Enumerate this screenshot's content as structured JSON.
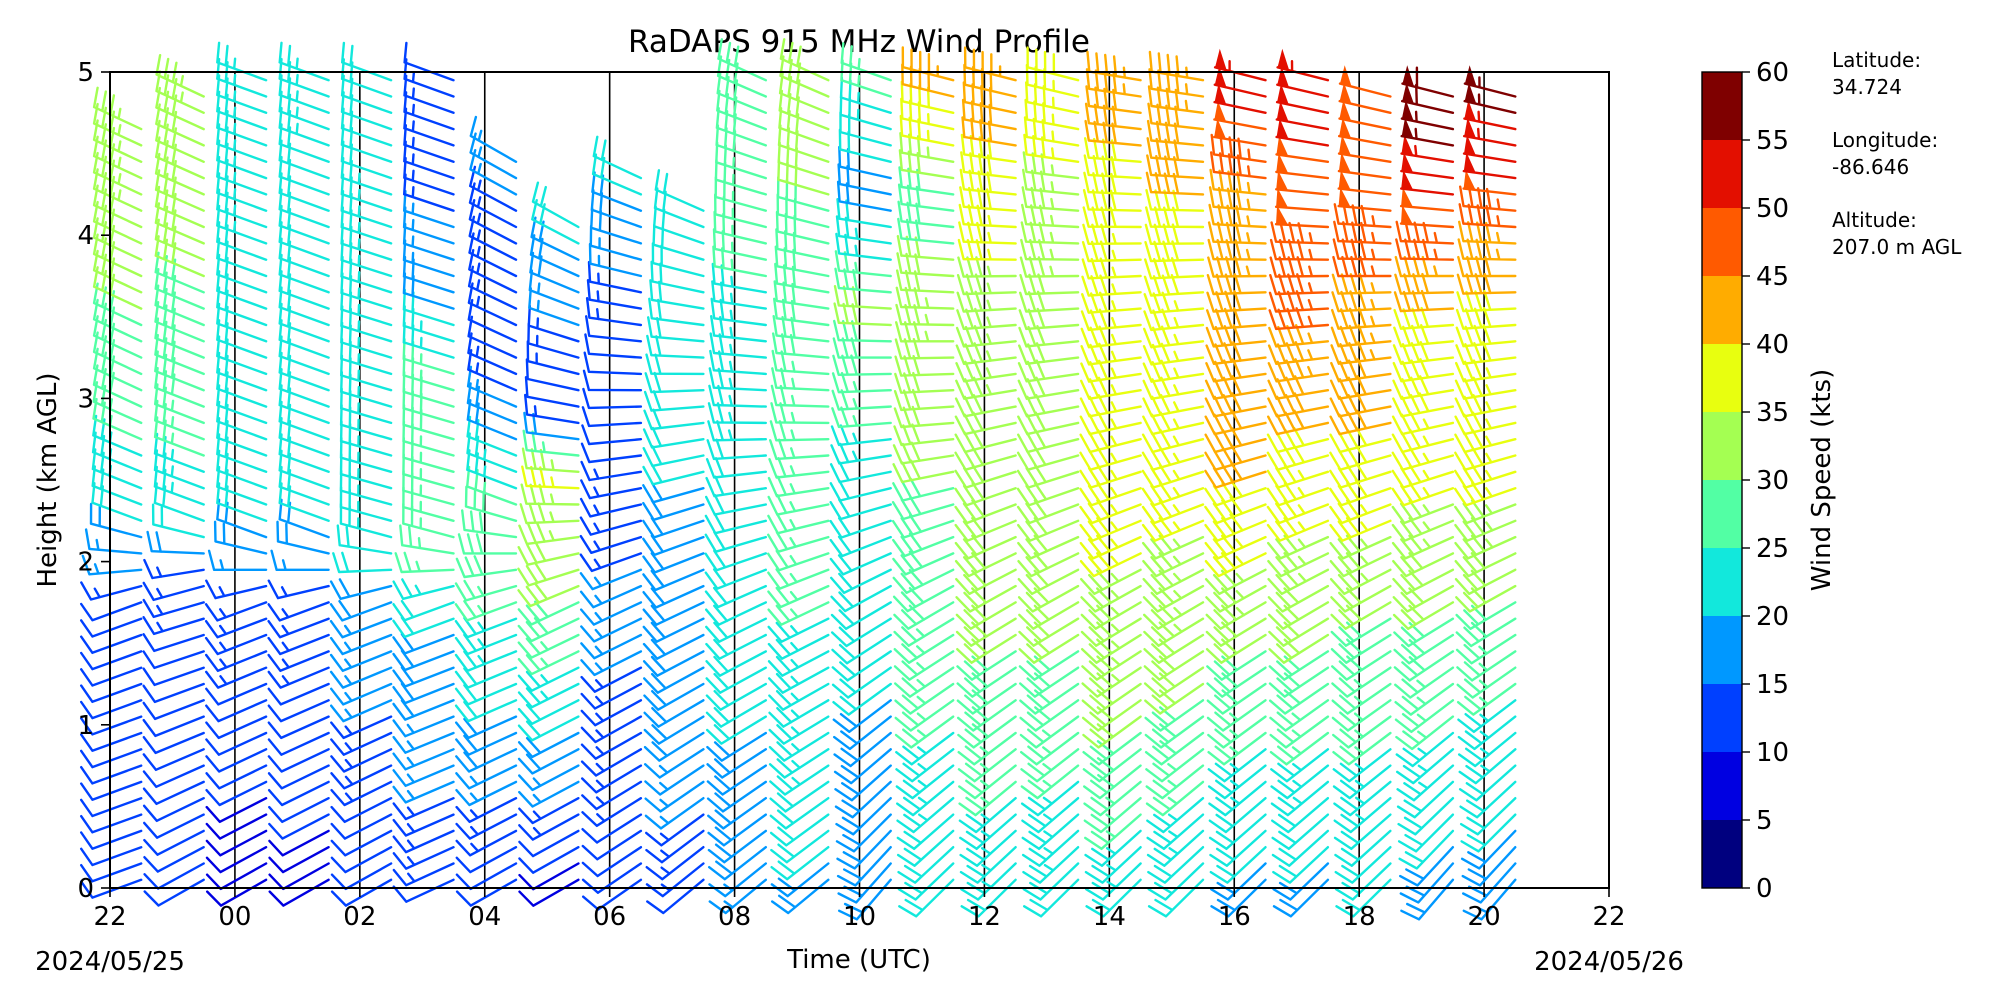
{
  "chart_data": {
    "type": "wind-barb",
    "title": "RaDAPS 915 MHz Wind Profile",
    "xlabel": "Time (UTC)",
    "ylabel": "Height (km AGL)",
    "x_ticks": [
      "22",
      "00",
      "02",
      "04",
      "06",
      "08",
      "10",
      "12",
      "14",
      "16",
      "18",
      "20",
      "22"
    ],
    "x_hours_since_start": [
      0,
      2,
      4,
      6,
      8,
      10,
      12,
      14,
      16,
      18,
      20,
      22,
      24
    ],
    "start_date": "2024/05/25",
    "end_date": "2024/05/26",
    "y_ticks": [
      "0",
      "1",
      "2",
      "3",
      "4",
      "5"
    ],
    "ylim": [
      0,
      5
    ],
    "colorbar": {
      "label": "Wind Speed (kts)",
      "boundaries": [
        0,
        5,
        10,
        15,
        20,
        25,
        30,
        35,
        40,
        45,
        50,
        55,
        60
      ],
      "tick_labels": [
        "0",
        "5",
        "10",
        "15",
        "20",
        "25",
        "30",
        "35",
        "40",
        "45",
        "50",
        "55",
        "60"
      ],
      "colors": [
        "#00007f",
        "#0000e1",
        "#0040ff",
        "#0098ff",
        "#12e8dc",
        "#52ffa4",
        "#a4ff52",
        "#e8ff0f",
        "#ffac00",
        "#ff5a00",
        "#e30f00",
        "#7f0000"
      ]
    },
    "station": {
      "latitude_label": "Latitude:",
      "latitude": "34.724",
      "longitude_label": "Longitude:",
      "longitude": "-86.646",
      "altitude_label": "Altitude:",
      "altitude": "207.0 m AGL"
    },
    "profiles": [
      {
        "time": 0.5,
        "top": 4.7,
        "dir": [
          [
            0,
            250
          ],
          [
            1.8,
            250
          ],
          [
            2.2,
            290
          ],
          [
            3,
            295
          ],
          [
            4.7,
            295
          ]
        ],
        "spd": [
          [
            0,
            10
          ],
          [
            1.8,
            12
          ],
          [
            2.2,
            20
          ],
          [
            3,
            28
          ],
          [
            4.7,
            35
          ]
        ]
      },
      {
        "time": 1.5,
        "top": 4.85,
        "dir": [
          [
            0,
            240
          ],
          [
            1.9,
            255
          ],
          [
            2.2,
            290
          ],
          [
            4.85,
            295
          ]
        ],
        "spd": [
          [
            0,
            10
          ],
          [
            1.9,
            13
          ],
          [
            2.2,
            22
          ],
          [
            3,
            28
          ],
          [
            4.85,
            33
          ]
        ]
      },
      {
        "time": 2.5,
        "top": 5,
        "dir": [
          [
            0,
            240
          ],
          [
            1.8,
            250
          ],
          [
            2.1,
            290
          ],
          [
            5,
            290
          ]
        ],
        "spd": [
          [
            0,
            8
          ],
          [
            1.8,
            14
          ],
          [
            2.2,
            20
          ],
          [
            5,
            24
          ]
        ]
      },
      {
        "time": 3.5,
        "top": 5,
        "dir": [
          [
            0,
            240
          ],
          [
            1.8,
            250
          ],
          [
            2.1,
            290
          ],
          [
            5,
            290
          ]
        ],
        "spd": [
          [
            0,
            9
          ],
          [
            1.8,
            14
          ],
          [
            2.2,
            20
          ],
          [
            5,
            23
          ]
        ]
      },
      {
        "time": 4.5,
        "top": 5,
        "dir": [
          [
            0,
            240
          ],
          [
            1.8,
            250
          ],
          [
            2.1,
            285
          ],
          [
            5,
            290
          ]
        ],
        "spd": [
          [
            0,
            10
          ],
          [
            1.8,
            18
          ],
          [
            2.2,
            24
          ],
          [
            5,
            22
          ]
        ]
      },
      {
        "time": 5.5,
        "top": 5,
        "dir": [
          [
            0,
            245
          ],
          [
            1.8,
            250
          ],
          [
            2.1,
            285
          ],
          [
            5,
            290
          ]
        ],
        "spd": [
          [
            0,
            12
          ],
          [
            1.6,
            20
          ],
          [
            2,
            26
          ],
          [
            3,
            28
          ],
          [
            3.8,
            16
          ],
          [
            5,
            12
          ]
        ]
      },
      {
        "time": 6.5,
        "top": 4.5,
        "dir": [
          [
            0,
            240
          ],
          [
            1.8,
            250
          ],
          [
            2.3,
            290
          ],
          [
            4.5,
            300
          ]
        ],
        "spd": [
          [
            0,
            10
          ],
          [
            1.8,
            26
          ],
          [
            2.2,
            30
          ],
          [
            2.5,
            24
          ],
          [
            3.2,
            12
          ],
          [
            4.5,
            16
          ]
        ]
      },
      {
        "time": 7.5,
        "top": 4.1,
        "dir": [
          [
            0,
            240
          ],
          [
            1.8,
            245
          ],
          [
            2.3,
            270
          ],
          [
            4.1,
            300
          ]
        ],
        "spd": [
          [
            0,
            8
          ],
          [
            1.8,
            30
          ],
          [
            2.5,
            36
          ],
          [
            2.9,
            10
          ],
          [
            4.1,
            22
          ]
        ]
      },
      {
        "time": 8.5,
        "top": 4.35,
        "dir": [
          [
            0,
            235
          ],
          [
            1.8,
            245
          ],
          [
            2.5,
            260
          ],
          [
            4.35,
            295
          ]
        ],
        "spd": [
          [
            0,
            11
          ],
          [
            1.8,
            16
          ],
          [
            2.5,
            13
          ],
          [
            3.2,
            10
          ],
          [
            4.35,
            22
          ]
        ]
      },
      {
        "time": 9.5,
        "top": 4.2,
        "dir": [
          [
            0,
            230
          ],
          [
            1.8,
            245
          ],
          [
            2.5,
            255
          ],
          [
            4.2,
            295
          ]
        ],
        "spd": [
          [
            0,
            12
          ],
          [
            1,
            18
          ],
          [
            2.5,
            20
          ],
          [
            4.2,
            22
          ]
        ]
      },
      {
        "time": 10.5,
        "top": 5,
        "dir": [
          [
            0,
            230
          ],
          [
            1.8,
            245
          ],
          [
            2.8,
            270
          ],
          [
            5,
            295
          ]
        ],
        "spd": [
          [
            0,
            17
          ],
          [
            1,
            20
          ],
          [
            2.5,
            22
          ],
          [
            3.5,
            24
          ],
          [
            5,
            30
          ]
        ]
      },
      {
        "time": 11.5,
        "top": 5,
        "dir": [
          [
            0,
            230
          ],
          [
            1.8,
            245
          ],
          [
            2.8,
            270
          ],
          [
            5,
            295
          ]
        ],
        "spd": [
          [
            0,
            19
          ],
          [
            1,
            24
          ],
          [
            2.5,
            26
          ],
          [
            3.5,
            28
          ],
          [
            5,
            32
          ]
        ]
      },
      {
        "time": 12.5,
        "top": 5,
        "dir": [
          [
            0,
            220
          ],
          [
            1.8,
            240
          ],
          [
            2.8,
            265
          ],
          [
            5,
            290
          ]
        ],
        "spd": [
          [
            0,
            19
          ],
          [
            1.2,
            20
          ],
          [
            2.5,
            22
          ],
          [
            3.5,
            31
          ],
          [
            4.2,
            18
          ],
          [
            5,
            28
          ]
        ]
      },
      {
        "time": 13.5,
        "top": 5,
        "dir": [
          [
            0,
            225
          ],
          [
            1.8,
            240
          ],
          [
            2.8,
            265
          ],
          [
            5,
            285
          ]
        ],
        "spd": [
          [
            0,
            20
          ],
          [
            1.2,
            26
          ],
          [
            2.5,
            30
          ],
          [
            3.5,
            33
          ],
          [
            4.2,
            28
          ],
          [
            5,
            44
          ]
        ]
      },
      {
        "time": 14.5,
        "top": 5,
        "dir": [
          [
            0,
            225
          ],
          [
            1.8,
            240
          ],
          [
            3,
            260
          ],
          [
            5,
            285
          ]
        ],
        "spd": [
          [
            0,
            22
          ],
          [
            1.5,
            30
          ],
          [
            2.5,
            32
          ],
          [
            3.5,
            33
          ],
          [
            4.2,
            38
          ],
          [
            5,
            43
          ]
        ]
      },
      {
        "time": 15.5,
        "top": 5,
        "dir": [
          [
            0,
            225
          ],
          [
            1.8,
            240
          ],
          [
            3,
            260
          ],
          [
            5,
            285
          ]
        ],
        "spd": [
          [
            0,
            21
          ],
          [
            1.5,
            30
          ],
          [
            2.5,
            32
          ],
          [
            3.5,
            32
          ],
          [
            4.2,
            34
          ],
          [
            5,
            38
          ]
        ]
      },
      {
        "time": 16.5,
        "top": 5,
        "dir": [
          [
            0,
            225
          ],
          [
            1.8,
            240
          ],
          [
            3,
            260
          ],
          [
            5,
            280
          ]
        ],
        "spd": [
          [
            0,
            22
          ],
          [
            1.5,
            34
          ],
          [
            2.5,
            36
          ],
          [
            3.5,
            36
          ],
          [
            4.2,
            38
          ],
          [
            5,
            44
          ]
        ]
      },
      {
        "time": 17.5,
        "top": 5,
        "dir": [
          [
            0,
            225
          ],
          [
            1.8,
            240
          ],
          [
            3,
            260
          ],
          [
            5,
            280
          ]
        ],
        "spd": [
          [
            0,
            20
          ],
          [
            1.5,
            32
          ],
          [
            2.5,
            36
          ],
          [
            3.5,
            37
          ],
          [
            4.2,
            40
          ],
          [
            5,
            44
          ]
        ]
      },
      {
        "time": 18.5,
        "top": 5,
        "dir": [
          [
            0,
            225
          ],
          [
            1.8,
            240
          ],
          [
            3,
            260
          ],
          [
            5,
            285
          ]
        ],
        "spd": [
          [
            0,
            18
          ],
          [
            1.5,
            30
          ],
          [
            2.5,
            40
          ],
          [
            3.5,
            42
          ],
          [
            4.2,
            44
          ],
          [
            5,
            54
          ]
        ]
      },
      {
        "time": 19.5,
        "top": 5,
        "dir": [
          [
            0,
            225
          ],
          [
            1.8,
            240
          ],
          [
            3,
            260
          ],
          [
            5,
            285
          ]
        ],
        "spd": [
          [
            0,
            18
          ],
          [
            1.5,
            30
          ],
          [
            2.5,
            37
          ],
          [
            3.5,
            46
          ],
          [
            4.2,
            48
          ],
          [
            5,
            53
          ]
        ]
      },
      {
        "time": 20.5,
        "top": 4.9,
        "dir": [
          [
            0,
            225
          ],
          [
            1.8,
            240
          ],
          [
            3,
            260
          ],
          [
            4.9,
            285
          ]
        ],
        "spd": [
          [
            0,
            20
          ],
          [
            1.5,
            28
          ],
          [
            2.5,
            38
          ],
          [
            3.5,
            44
          ],
          [
            4.2,
            48
          ],
          [
            4.9,
            50
          ]
        ]
      },
      {
        "time": 21.5,
        "top": 4.9,
        "dir": [
          [
            0,
            220
          ],
          [
            1.8,
            240
          ],
          [
            3,
            260
          ],
          [
            4.9,
            285
          ]
        ],
        "spd": [
          [
            0,
            18
          ],
          [
            1.5,
            28
          ],
          [
            2.5,
            36
          ],
          [
            3.5,
            40
          ],
          [
            4.2,
            50
          ],
          [
            4.9,
            60
          ]
        ]
      },
      {
        "time": 22.5,
        "top": 4.9,
        "dir": [
          [
            0,
            220
          ],
          [
            1.8,
            240
          ],
          [
            3,
            260
          ],
          [
            4.9,
            285
          ]
        ],
        "spd": [
          [
            0,
            17
          ],
          [
            1.5,
            27
          ],
          [
            2.5,
            36
          ],
          [
            3.5,
            38
          ],
          [
            4.2,
            48
          ],
          [
            4.9,
            58
          ]
        ]
      }
    ]
  }
}
